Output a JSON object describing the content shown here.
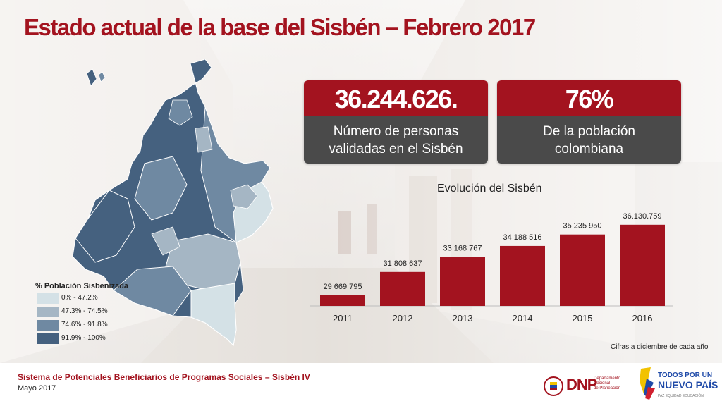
{
  "slide": {
    "title": "Estado actual de la base del Sisbén – Febrero 2017"
  },
  "kpis": [
    {
      "value": "36.244.626.",
      "caption_line1": "Número de personas",
      "caption_line2": "validadas en el Sisbén"
    },
    {
      "value": "76%",
      "caption_line1": "De la población",
      "caption_line2": "colombiana"
    }
  ],
  "map_legend": {
    "title": "% Población Sisbenizada",
    "items": [
      {
        "label": "0% - 47.2%",
        "color": "#d4e1e6"
      },
      {
        "label": "47.3% - 74.5%",
        "color": "#a5b6c4"
      },
      {
        "label": "74.6% - 91.8%",
        "color": "#6f89a2"
      },
      {
        "label": "91.9% - 100%",
        "color": "#45617f"
      }
    ]
  },
  "chart_data": {
    "type": "bar",
    "title": "Evolución del Sisbén",
    "categories": [
      "2011",
      "2012",
      "2013",
      "2014",
      "2015",
      "2016"
    ],
    "values": [
      29669795,
      31808637,
      33168767,
      34188516,
      35235950,
      36130759
    ],
    "value_labels": [
      "29 669 795",
      "31 808 637",
      "33 168 767",
      "34 188 516",
      "35 235 950",
      "36.130.759"
    ],
    "ylim": [
      28700000,
      36700000
    ],
    "bar_color": "#a3131f",
    "note": "Cifras a diciembre de cada año"
  },
  "footer": {
    "line1": "Sistema de Potenciales Beneficiarios de Programas Sociales – Sisbén IV",
    "line2": "Mayo 2017"
  },
  "logos": {
    "dnp": "DNP",
    "dnp_sub": [
      "Departamento",
      "Nacional",
      "de Planeación"
    ],
    "tpn_line1": "TODOS POR UN",
    "tpn_line2": "NUEVO PAÍS",
    "tpn_line3": "PAZ  EQUIDAD  EDUCACIÓN"
  },
  "colors": {
    "brand_red": "#a3131f",
    "dark_gray": "#4a4a4a"
  }
}
